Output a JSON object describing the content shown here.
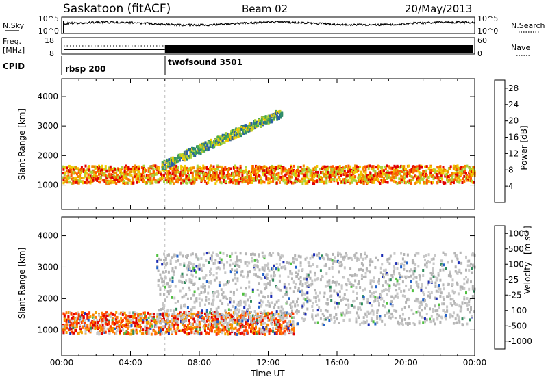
{
  "header": {
    "station": "Saskatoon (fitACF)",
    "beam": "Beam 02",
    "date": "20/May/2013"
  },
  "summary": {
    "left_labels": {
      "nsky": "N.Sky",
      "freq": "Freq.",
      "freq_unit": "[MHz]",
      "cpid": "CPID"
    },
    "right_labels": {
      "nsearch": "N.Search",
      "nave": "Nave"
    },
    "noise_axis_left": [
      "10^5",
      "10^0"
    ],
    "noise_axis_right": [
      "10^5",
      "10^0"
    ],
    "freq_axis": [
      "18",
      "8"
    ],
    "nave_axis": [
      "60",
      "0"
    ],
    "cpid_modes": [
      {
        "name": "rbsp 200",
        "start": "00:00",
        "end": "06:00"
      },
      {
        "name": "twofsound 3501",
        "start": "06:00",
        "end": "24:00"
      }
    ]
  },
  "colors": {
    "power_scale": [
      "#1a1aff",
      "#2a5aa8",
      "#2e8a6e",
      "#4caa4c",
      "#a8d23c",
      "#f0c800",
      "#f08c00",
      "#ff5a00",
      "#e00000"
    ],
    "velocity_scale": [
      "#1a2ab4",
      "#2060c8",
      "#2e8a5a",
      "#50c040",
      "#b4b4b4",
      "#c8c8c8",
      "#f0a000",
      "#ff7a00",
      "#ff3c00",
      "#e00000"
    ]
  },
  "chart_data": [
    {
      "type": "heatmap",
      "title": "Power",
      "xlabel": "Time UT",
      "ylabel": "Slant Range [km]",
      "x_ticks": [
        "00:00",
        "04:00",
        "08:00",
        "12:00",
        "16:00",
        "20:00",
        "00:00"
      ],
      "x_range_hours": [
        0,
        24
      ],
      "y_ticks": [
        1000,
        2000,
        3000,
        4000
      ],
      "y_range_km": [
        180,
        4600
      ],
      "colorbar": {
        "label": "Power [dB]",
        "ticks": [
          4,
          8,
          12,
          16,
          20,
          24,
          28
        ],
        "range": [
          0,
          30
        ]
      },
      "features": [
        {
          "name": "main band",
          "t_start": 0,
          "t_end": 24,
          "range_km": [
            1100,
            1700
          ],
          "power_db": 22
        },
        {
          "name": "rising trace",
          "t_start": 5.8,
          "t_end": 12.8,
          "range_km": [
            1600,
            3500
          ],
          "power_db": 12
        }
      ]
    },
    {
      "type": "heatmap",
      "title": "Velocity",
      "xlabel": "Time UT",
      "ylabel": "Slant Range [km]",
      "x_ticks": [
        "00:00",
        "04:00",
        "08:00",
        "12:00",
        "16:00",
        "20:00",
        "00:00"
      ],
      "x_range_hours": [
        0,
        24
      ],
      "y_ticks": [
        1000,
        2000,
        3000,
        4000
      ],
      "y_range_km": [
        180,
        4600
      ],
      "colorbar": {
        "label": "Velocity [m s^-1]",
        "ticks": [
          1000,
          500,
          100,
          25,
          -25,
          -100,
          -500,
          -1000
        ]
      },
      "features": [
        {
          "name": "main band",
          "t_start": 0,
          "t_end": 13.5,
          "range_km": [
            900,
            1600
          ],
          "velocity": -300
        },
        {
          "name": "ground scatter",
          "t_start": 5.5,
          "t_end": 24,
          "range_km": [
            1200,
            3500
          ],
          "velocity": 0
        }
      ]
    }
  ],
  "axes_text": {
    "xlabel": "Time UT",
    "ylabel": "Slant Range [km]",
    "power_label": "Power [dB]",
    "velocity_label": "Velocity",
    "velocity_unit": "[m s",
    "velocity_unit_exp": "-1",
    "velocity_unit_close": "]"
  }
}
